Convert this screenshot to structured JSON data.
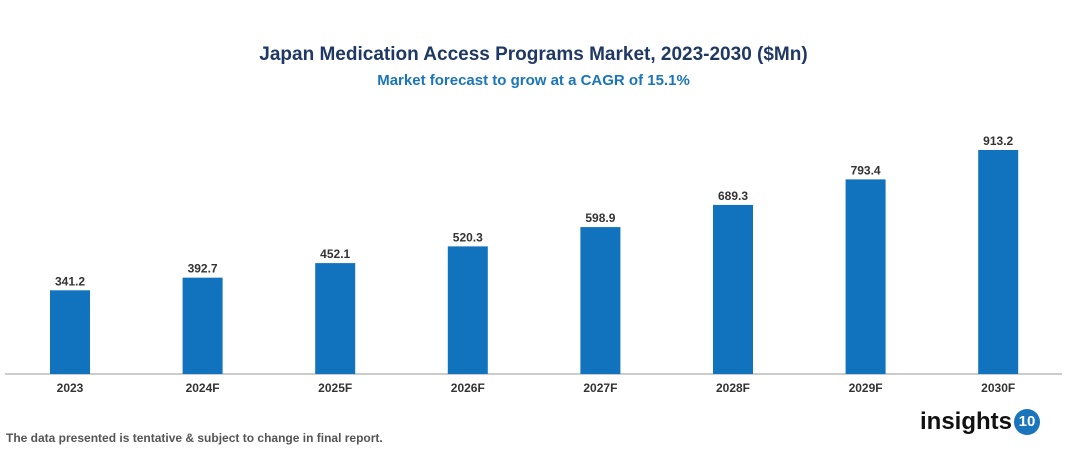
{
  "chart_data": {
    "type": "bar",
    "title": "Japan Medication Access Programs Market, 2023-2030 ($Mn)",
    "subtitle": "Market forecast to grow at a CAGR of 15.1%",
    "categories": [
      "2023",
      "2024F",
      "2025F",
      "2026F",
      "2027F",
      "2028F",
      "2029F",
      "2030F"
    ],
    "values": [
      341.2,
      392.7,
      452.1,
      520.3,
      598.9,
      689.3,
      793.4,
      913.2
    ],
    "value_labels": [
      "341.2",
      "392.7",
      "452.1",
      "520.3",
      "598.9",
      "689.3",
      "793.4",
      "913.2"
    ],
    "xlabel": "",
    "ylabel": "",
    "ylim": [
      0,
      1000
    ],
    "grid": false,
    "bar_color": "#1172bd"
  },
  "footnote": "The data presented is tentative & subject to change in final report.",
  "logo": {
    "text": "insights",
    "badge": "10"
  }
}
